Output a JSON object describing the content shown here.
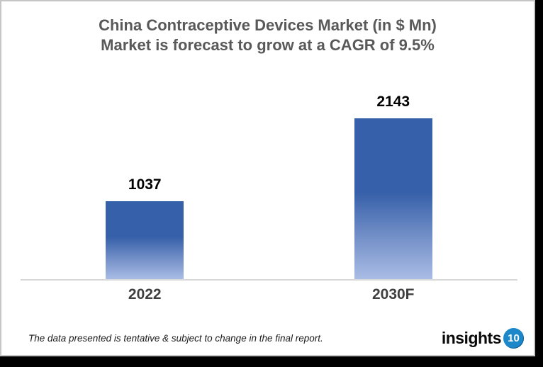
{
  "title": {
    "line1": "China Contraceptive Devices Market (in $ Mn)",
    "line2": "Market is forecast to grow at a CAGR of 9.5%"
  },
  "chart_data": {
    "type": "bar",
    "categories": [
      "2022",
      "2030F"
    ],
    "values": [
      1037,
      2143
    ],
    "data_labels": [
      "1037",
      "2143"
    ],
    "title": "China Contraceptive Devices Market (in $ Mn)",
    "subtitle": "Market is forecast to grow at a CAGR of 9.5%",
    "xlabel": "",
    "ylabel": "",
    "ylim": [
      0,
      2870
    ],
    "grid": false,
    "legend": false,
    "cagr": "9.5%",
    "bar_gradient": {
      "top": "#3660A9",
      "mid": "#7490C8",
      "bottom": "#A9BCE5"
    },
    "axis_color": "#D9D9D9"
  },
  "footer": {
    "disclaimer": "The data presented is tentative & subject to change in the final report.",
    "logo_text": "insights",
    "logo_badge": "10",
    "logo_badge_color": "#1C87C9"
  }
}
